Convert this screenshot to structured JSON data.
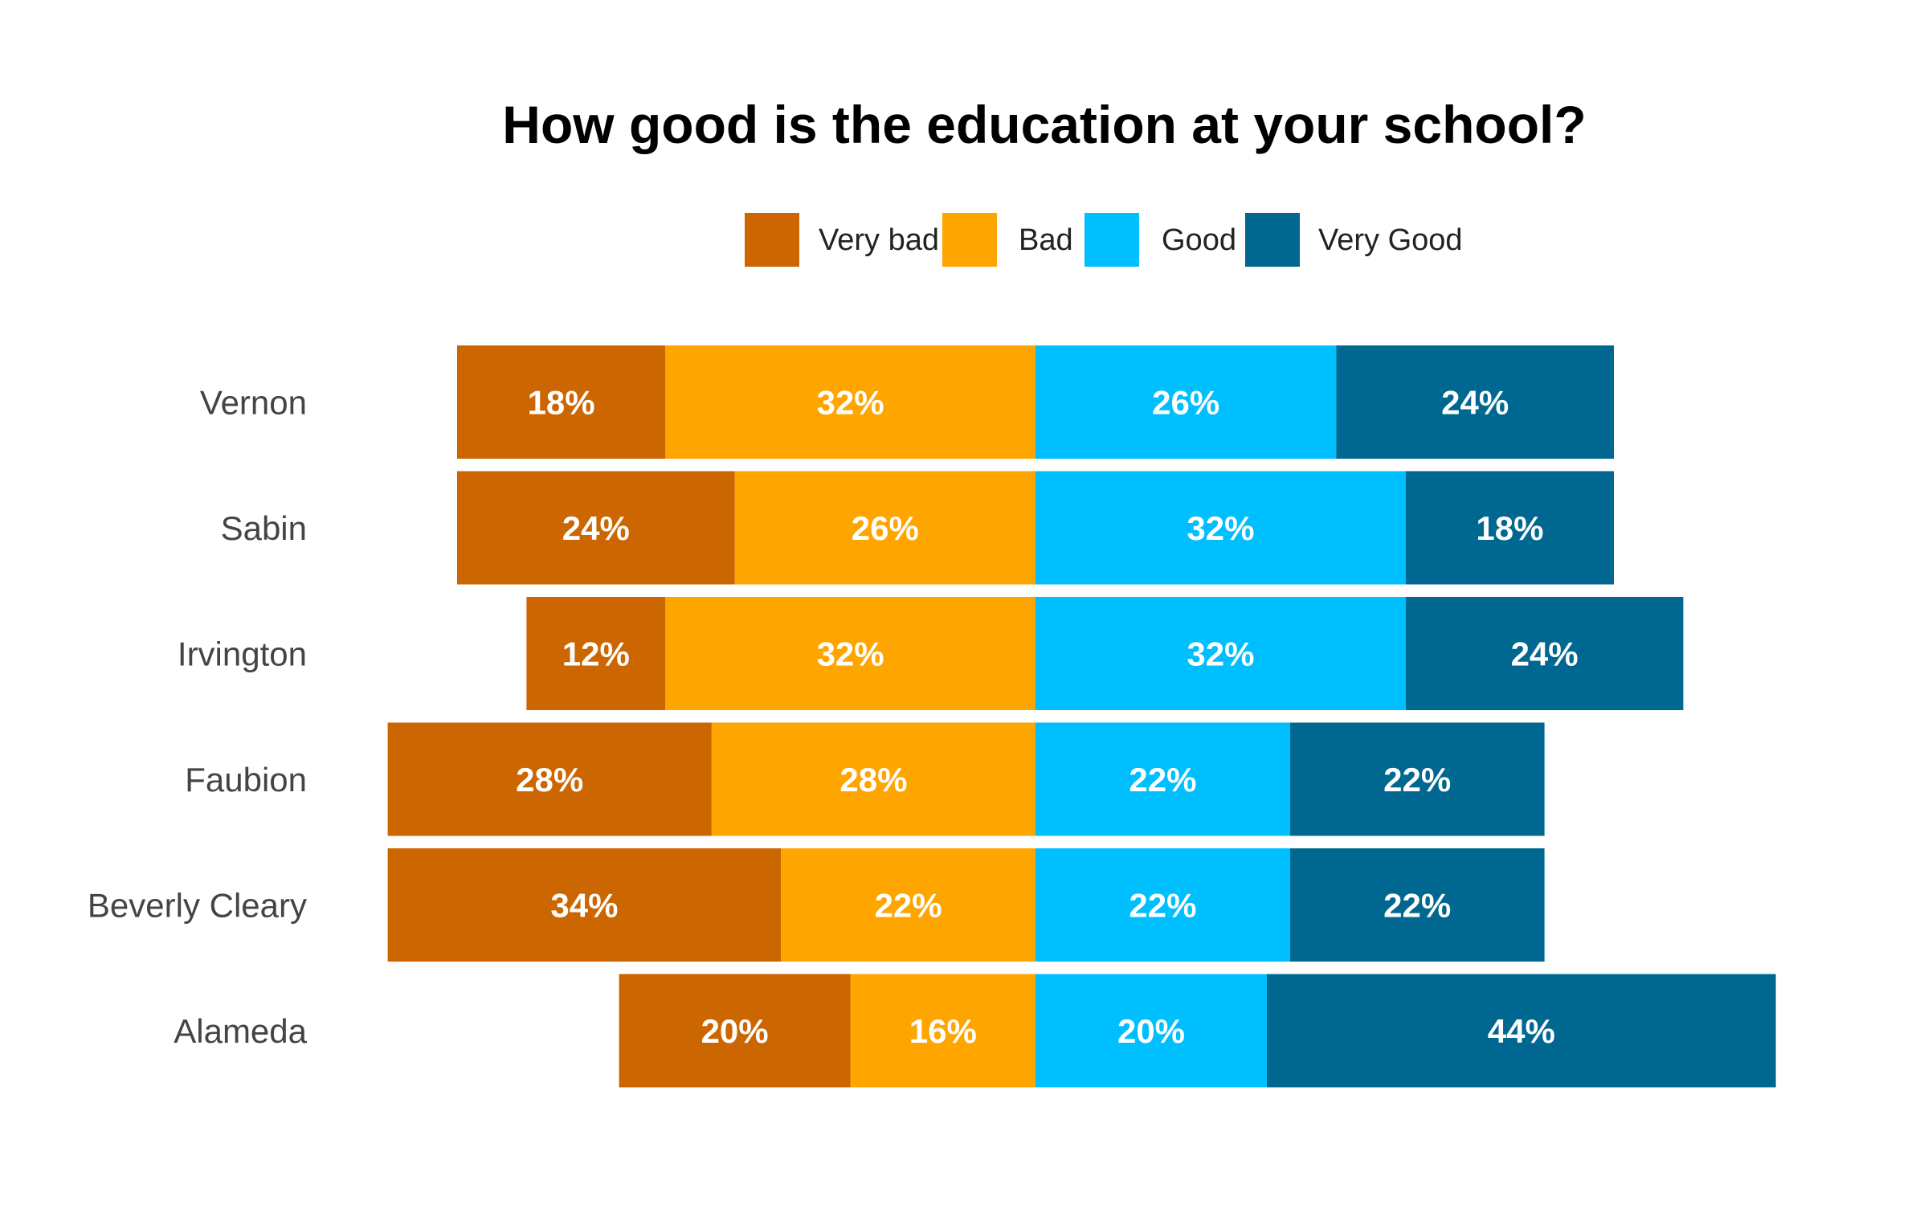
{
  "chart_data": {
    "type": "bar",
    "orientation": "horizontal",
    "stacking": "diverging",
    "title": "How good is the education at your school?",
    "xlabel": "",
    "ylabel": "",
    "categories": [
      "Vernon",
      "Sabin",
      "Irvington",
      "Faubion",
      "Beverly Cleary",
      "Alameda"
    ],
    "series": [
      {
        "name": "Very bad",
        "color": "#CC6600",
        "values": [
          18,
          24,
          12,
          28,
          34,
          20
        ],
        "side": "negative"
      },
      {
        "name": "Bad",
        "color": "#FFA500",
        "values": [
          32,
          26,
          32,
          28,
          22,
          16
        ],
        "side": "negative"
      },
      {
        "name": "Good",
        "color": "#00BFFF",
        "values": [
          26,
          32,
          32,
          22,
          22,
          20
        ],
        "side": "positive"
      },
      {
        "name": "Very Good",
        "color": "#006890",
        "values": [
          24,
          18,
          24,
          22,
          22,
          44
        ],
        "side": "positive"
      }
    ],
    "value_suffix": "%",
    "legend_position": "top",
    "grid": false
  }
}
